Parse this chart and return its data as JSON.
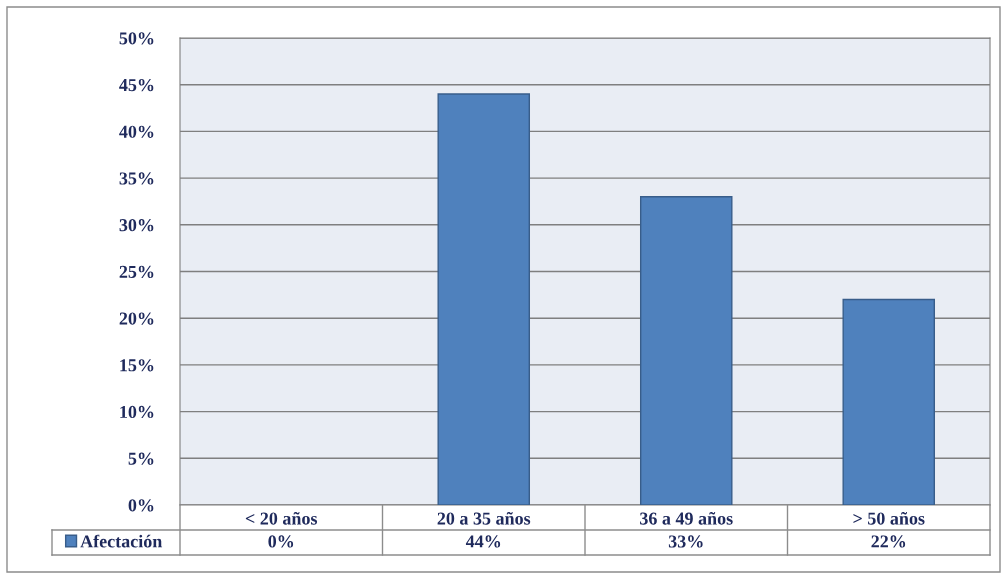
{
  "chart_data": {
    "type": "bar",
    "categories": [
      "< 20 años",
      "20 a 35 años",
      "36 a 49 años",
      "> 50 años"
    ],
    "series": [
      {
        "name": "Afectación",
        "color": "#4f81bd",
        "values": [
          0,
          44,
          33,
          22
        ],
        "value_labels": [
          "0%",
          "44%",
          "33%",
          "22%"
        ]
      }
    ],
    "ylim": [
      0,
      50
    ],
    "yticks": [
      {
        "value": 0,
        "label": "0%"
      },
      {
        "value": 5,
        "label": "5%"
      },
      {
        "value": 10,
        "label": "10%"
      },
      {
        "value": 15,
        "label": "15%"
      },
      {
        "value": 20,
        "label": "20%"
      },
      {
        "value": 25,
        "label": "25%"
      },
      {
        "value": 30,
        "label": "30%"
      },
      {
        "value": 35,
        "label": "35%"
      },
      {
        "value": 40,
        "label": "40%"
      },
      {
        "value": 45,
        "label": "45%"
      },
      {
        "value": 50,
        "label": "50%"
      }
    ],
    "grid": "y",
    "legend": "bottom left"
  }
}
